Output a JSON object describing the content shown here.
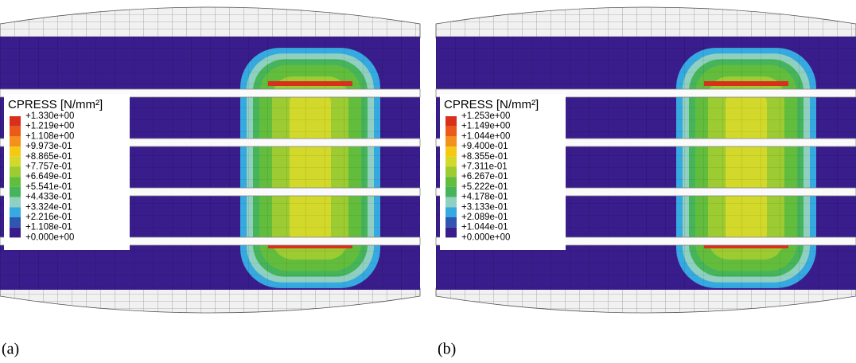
{
  "panels": [
    {
      "legend": {
        "title": "CPRESS [N/mm²]",
        "labels": [
          "+1.330e+00",
          "+1.219e+00",
          "+1.108e+00",
          "+9.973e-01",
          "+8.865e-01",
          "+7.757e-01",
          "+6.649e-01",
          "+5.541e-01",
          "+4.433e-01",
          "+3.324e-01",
          "+2.216e-01",
          "+1.108e-01",
          "+0.000e+00"
        ]
      },
      "caption": "(a)"
    },
    {
      "legend": {
        "title": "CPRESS [N/mm²]",
        "labels": [
          "+1.253e+00",
          "+1.149e+00",
          "+1.044e+00",
          "+9.400e-01",
          "+8.355e-01",
          "+7.311e-01",
          "+6.267e-01",
          "+5.222e-01",
          "+4.178e-01",
          "+3.133e-01",
          "+2.089e-01",
          "+1.044e-01",
          "+0.000e+00"
        ]
      },
      "caption": "(b)"
    }
  ]
}
